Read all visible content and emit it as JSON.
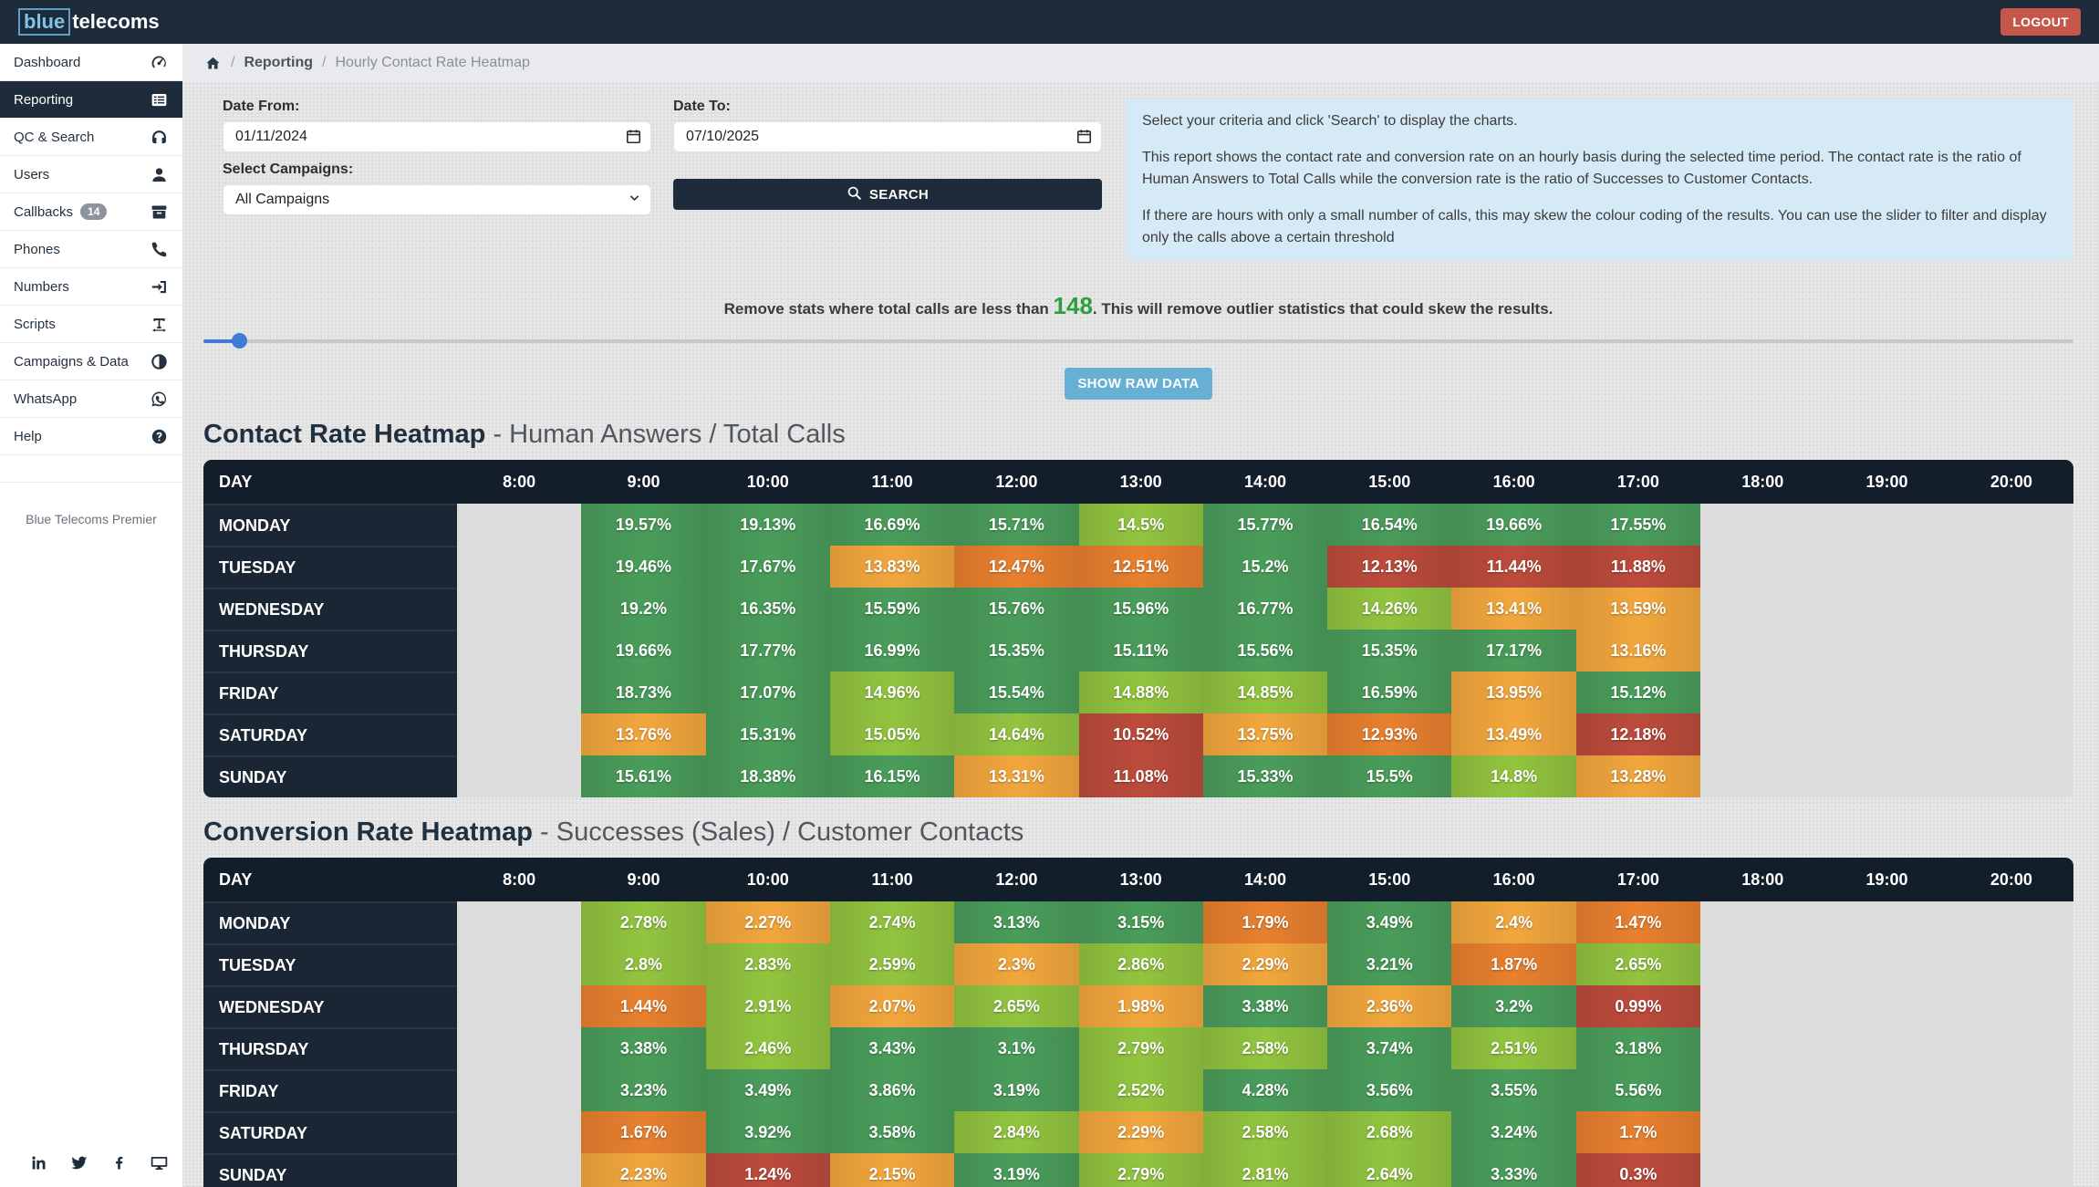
{
  "navbar": {
    "logo_blue": "blue",
    "logo_rest": "telecoms",
    "logout_label": "LOGOUT"
  },
  "sidebar": {
    "items": [
      {
        "label": "Dashboard",
        "icon": "gauge"
      },
      {
        "label": "Reporting",
        "icon": "report",
        "active": true
      },
      {
        "label": "QC & Search",
        "icon": "headphones"
      },
      {
        "label": "Users",
        "icon": "user"
      },
      {
        "label": "Callbacks",
        "icon": "archive",
        "badge": "14"
      },
      {
        "label": "Phones",
        "icon": "phone"
      },
      {
        "label": "Numbers",
        "icon": "signin"
      },
      {
        "label": "Scripts",
        "icon": "textwidth"
      },
      {
        "label": "Campaigns & Data",
        "icon": "contrast"
      },
      {
        "label": "WhatsApp",
        "icon": "whatsapp"
      },
      {
        "label": "Help",
        "icon": "help"
      }
    ],
    "footer_note": "Blue Telecoms Premier",
    "social": [
      "linkedin",
      "twitter",
      "facebook",
      "desktop"
    ]
  },
  "breadcrumb": {
    "section": "Reporting",
    "page": "Hourly Contact Rate Heatmap",
    "separator": "/"
  },
  "filters": {
    "date_from_label": "Date From:",
    "date_from": "01/11/2024",
    "date_to_label": "Date To:",
    "date_to": "07/10/2025",
    "campaigns_label": "Select Campaigns:",
    "campaigns_value": "All Campaigns",
    "search_label": "SEARCH"
  },
  "info_box": {
    "p1": "Select your criteria and click 'Search' to display the charts.",
    "p2": "This report shows the contact rate and conversion rate on an hourly basis during the selected time period. The contact rate is the ratio of Human Answers to Total Calls while the conversion rate is the ratio of Successes to Customer Contacts.",
    "p3": "If there are hours with only a small number of calls, this may skew the colour coding of the results. You can use the slider to filter and display only the calls above a certain threshold"
  },
  "threshold": {
    "prefix": "Remove stats where total calls are less than ",
    "value": "148",
    "suffix": ". This will remove outlier statistics that could skew the results."
  },
  "show_raw_data_label": "SHOW RAW DATA",
  "heat_levels": {
    "g": "#4a9d5b",
    "lg": "#92c43f",
    "o": "#f2a73d",
    "do": "#e8802f",
    "r": "#bc4b3c"
  },
  "chart_data": [
    {
      "type": "heatmap",
      "title": "Contact Rate Heatmap",
      "subtitle": " - Human Answers / Total Calls",
      "corner_label": "DAY",
      "x_labels": [
        "8:00",
        "9:00",
        "10:00",
        "11:00",
        "12:00",
        "13:00",
        "14:00",
        "15:00",
        "16:00",
        "17:00",
        "18:00",
        "19:00",
        "20:00"
      ],
      "rows": [
        {
          "day": "MONDAY",
          "values": [
            null,
            [
              "19.57%",
              "g"
            ],
            [
              "19.13%",
              "g"
            ],
            [
              "16.69%",
              "g"
            ],
            [
              "15.71%",
              "g"
            ],
            [
              "14.5%",
              "lg"
            ],
            [
              "15.77%",
              "g"
            ],
            [
              "16.54%",
              "g"
            ],
            [
              "19.66%",
              "g"
            ],
            [
              "17.55%",
              "g"
            ],
            null,
            null,
            null
          ]
        },
        {
          "day": "TUESDAY",
          "values": [
            null,
            [
              "19.46%",
              "g"
            ],
            [
              "17.67%",
              "g"
            ],
            [
              "13.83%",
              "o"
            ],
            [
              "12.47%",
              "do"
            ],
            [
              "12.51%",
              "do"
            ],
            [
              "15.2%",
              "g"
            ],
            [
              "12.13%",
              "r"
            ],
            [
              "11.44%",
              "r"
            ],
            [
              "11.88%",
              "r"
            ],
            null,
            null,
            null
          ]
        },
        {
          "day": "WEDNESDAY",
          "values": [
            null,
            [
              "19.2%",
              "g"
            ],
            [
              "16.35%",
              "g"
            ],
            [
              "15.59%",
              "g"
            ],
            [
              "15.76%",
              "g"
            ],
            [
              "15.96%",
              "g"
            ],
            [
              "16.77%",
              "g"
            ],
            [
              "14.26%",
              "lg"
            ],
            [
              "13.41%",
              "o"
            ],
            [
              "13.59%",
              "o"
            ],
            null,
            null,
            null
          ]
        },
        {
          "day": "THURSDAY",
          "values": [
            null,
            [
              "19.66%",
              "g"
            ],
            [
              "17.77%",
              "g"
            ],
            [
              "16.99%",
              "g"
            ],
            [
              "15.35%",
              "g"
            ],
            [
              "15.11%",
              "g"
            ],
            [
              "15.56%",
              "g"
            ],
            [
              "15.35%",
              "g"
            ],
            [
              "17.17%",
              "g"
            ],
            [
              "13.16%",
              "o"
            ],
            null,
            null,
            null
          ]
        },
        {
          "day": "FRIDAY",
          "values": [
            null,
            [
              "18.73%",
              "g"
            ],
            [
              "17.07%",
              "g"
            ],
            [
              "14.96%",
              "lg"
            ],
            [
              "15.54%",
              "g"
            ],
            [
              "14.88%",
              "lg"
            ],
            [
              "14.85%",
              "lg"
            ],
            [
              "16.59%",
              "g"
            ],
            [
              "13.95%",
              "o"
            ],
            [
              "15.12%",
              "g"
            ],
            null,
            null,
            null
          ]
        },
        {
          "day": "SATURDAY",
          "values": [
            null,
            [
              "13.76%",
              "o"
            ],
            [
              "15.31%",
              "g"
            ],
            [
              "15.05%",
              "lg"
            ],
            [
              "14.64%",
              "lg"
            ],
            [
              "10.52%",
              "r"
            ],
            [
              "13.75%",
              "o"
            ],
            [
              "12.93%",
              "do"
            ],
            [
              "13.49%",
              "o"
            ],
            [
              "12.18%",
              "r"
            ],
            null,
            null,
            null
          ]
        },
        {
          "day": "SUNDAY",
          "values": [
            null,
            [
              "15.61%",
              "g"
            ],
            [
              "18.38%",
              "g"
            ],
            [
              "16.15%",
              "g"
            ],
            [
              "13.31%",
              "o"
            ],
            [
              "11.08%",
              "r"
            ],
            [
              "15.33%",
              "g"
            ],
            [
              "15.5%",
              "g"
            ],
            [
              "14.8%",
              "lg"
            ],
            [
              "13.28%",
              "o"
            ],
            null,
            null,
            null
          ]
        }
      ]
    },
    {
      "type": "heatmap",
      "title": "Conversion Rate Heatmap",
      "subtitle": " - Successes (Sales) / Customer Contacts",
      "corner_label": "DAY",
      "x_labels": [
        "8:00",
        "9:00",
        "10:00",
        "11:00",
        "12:00",
        "13:00",
        "14:00",
        "15:00",
        "16:00",
        "17:00",
        "18:00",
        "19:00",
        "20:00"
      ],
      "rows": [
        {
          "day": "MONDAY",
          "values": [
            null,
            [
              "2.78%",
              "lg"
            ],
            [
              "2.27%",
              "o"
            ],
            [
              "2.74%",
              "lg"
            ],
            [
              "3.13%",
              "g"
            ],
            [
              "3.15%",
              "g"
            ],
            [
              "1.79%",
              "do"
            ],
            [
              "3.49%",
              "g"
            ],
            [
              "2.4%",
              "o"
            ],
            [
              "1.47%",
              "do"
            ],
            null,
            null,
            null
          ]
        },
        {
          "day": "TUESDAY",
          "values": [
            null,
            [
              "2.8%",
              "lg"
            ],
            [
              "2.83%",
              "lg"
            ],
            [
              "2.59%",
              "lg"
            ],
            [
              "2.3%",
              "o"
            ],
            [
              "2.86%",
              "lg"
            ],
            [
              "2.29%",
              "o"
            ],
            [
              "3.21%",
              "g"
            ],
            [
              "1.87%",
              "do"
            ],
            [
              "2.65%",
              "lg"
            ],
            null,
            null,
            null
          ]
        },
        {
          "day": "WEDNESDAY",
          "values": [
            null,
            [
              "1.44%",
              "do"
            ],
            [
              "2.91%",
              "lg"
            ],
            [
              "2.07%",
              "o"
            ],
            [
              "2.65%",
              "lg"
            ],
            [
              "1.98%",
              "o"
            ],
            [
              "3.38%",
              "g"
            ],
            [
              "2.36%",
              "o"
            ],
            [
              "3.2%",
              "g"
            ],
            [
              "0.99%",
              "r"
            ],
            null,
            null,
            null
          ]
        },
        {
          "day": "THURSDAY",
          "values": [
            null,
            [
              "3.38%",
              "g"
            ],
            [
              "2.46%",
              "lg"
            ],
            [
              "3.43%",
              "g"
            ],
            [
              "3.1%",
              "g"
            ],
            [
              "2.79%",
              "lg"
            ],
            [
              "2.58%",
              "lg"
            ],
            [
              "3.74%",
              "g"
            ],
            [
              "2.51%",
              "lg"
            ],
            [
              "3.18%",
              "g"
            ],
            null,
            null,
            null
          ]
        },
        {
          "day": "FRIDAY",
          "values": [
            null,
            [
              "3.23%",
              "g"
            ],
            [
              "3.49%",
              "g"
            ],
            [
              "3.86%",
              "g"
            ],
            [
              "3.19%",
              "g"
            ],
            [
              "2.52%",
              "lg"
            ],
            [
              "4.28%",
              "g"
            ],
            [
              "3.56%",
              "g"
            ],
            [
              "3.55%",
              "g"
            ],
            [
              "5.56%",
              "g"
            ],
            null,
            null,
            null
          ]
        },
        {
          "day": "SATURDAY",
          "values": [
            null,
            [
              "1.67%",
              "do"
            ],
            [
              "3.92%",
              "g"
            ],
            [
              "3.58%",
              "g"
            ],
            [
              "2.84%",
              "lg"
            ],
            [
              "2.29%",
              "o"
            ],
            [
              "2.58%",
              "lg"
            ],
            [
              "2.68%",
              "lg"
            ],
            [
              "3.24%",
              "g"
            ],
            [
              "1.7%",
              "do"
            ],
            null,
            null,
            null
          ]
        },
        {
          "day": "SUNDAY",
          "values": [
            null,
            [
              "2.23%",
              "o"
            ],
            [
              "1.24%",
              "r"
            ],
            [
              "2.15%",
              "o"
            ],
            [
              "3.19%",
              "g"
            ],
            [
              "2.79%",
              "lg"
            ],
            [
              "2.81%",
              "lg"
            ],
            [
              "2.64%",
              "lg"
            ],
            [
              "3.33%",
              "g"
            ],
            [
              "0.3%",
              "r"
            ],
            null,
            null,
            null
          ]
        }
      ]
    }
  ]
}
